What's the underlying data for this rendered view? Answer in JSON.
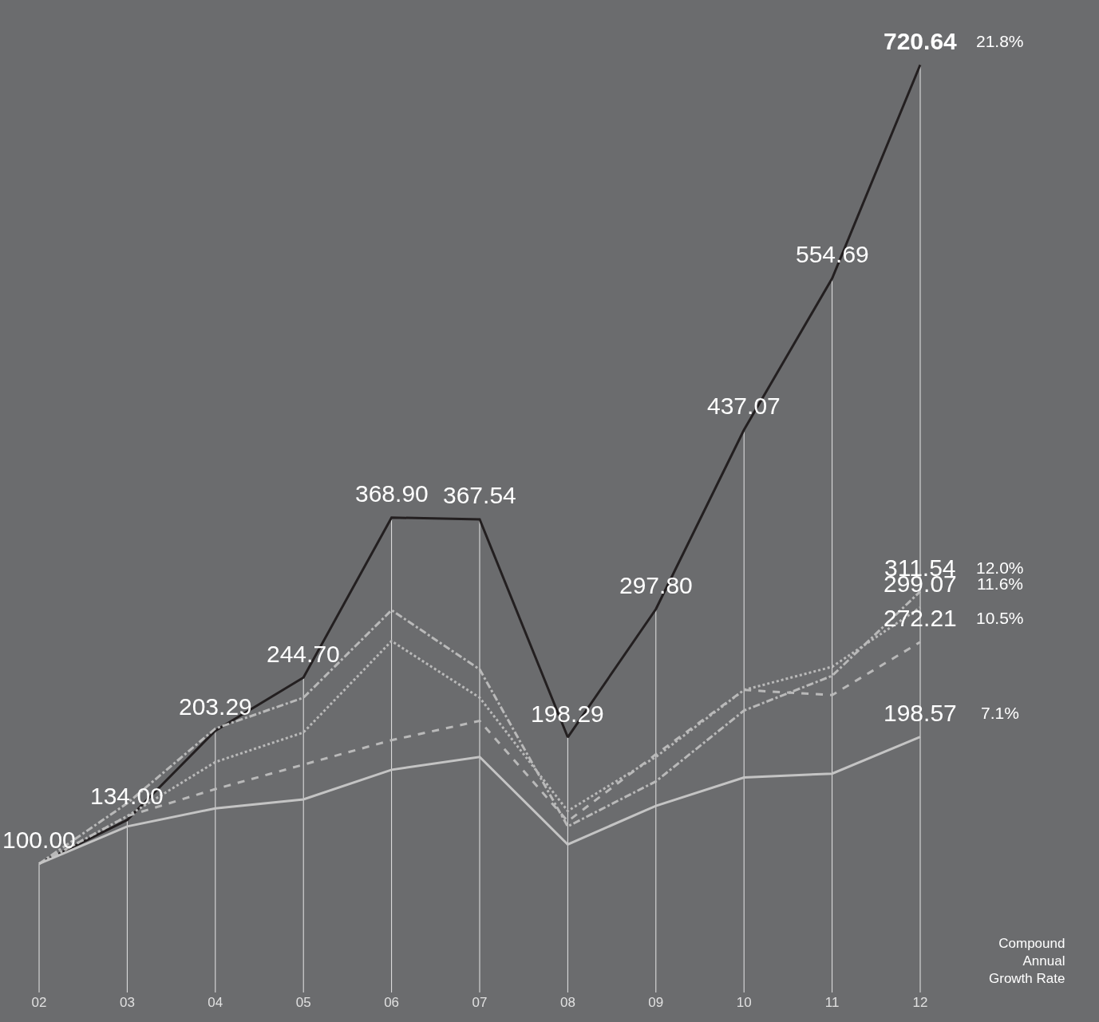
{
  "chart_data": {
    "type": "line",
    "categories": [
      "02",
      "03",
      "04",
      "05",
      "06",
      "07",
      "08",
      "09",
      "10",
      "11",
      "12"
    ],
    "series": [
      {
        "color": "#231f20",
        "line_style": "solid",
        "values": [
          100.0,
          134.0,
          203.29,
          244.7,
          368.9,
          367.54,
          198.29,
          297.8,
          437.07,
          554.69,
          720.64
        ],
        "value_labels": [
          "100.00",
          "134.00",
          "203.29",
          "244.70",
          "368.90",
          "367.54",
          "198.29",
          "297.80",
          "437.07",
          "554.69",
          "720.64"
        ]
      },
      {
        "color": "#b9b9b9",
        "line_style": "dashdot",
        "values": [
          100,
          147,
          205,
          229,
          297,
          251,
          129,
          164,
          219,
          246,
          311.54
        ],
        "value_labels": [
          null,
          null,
          null,
          null,
          null,
          null,
          null,
          null,
          null,
          null,
          "311.54"
        ]
      },
      {
        "color": "#b9b9b9",
        "line_style": "dotted",
        "values": [
          100,
          137,
          179,
          202,
          273,
          229,
          141,
          183,
          235,
          253,
          299.07
        ],
        "value_labels": [
          null,
          null,
          null,
          null,
          null,
          null,
          null,
          null,
          null,
          null,
          "299.07"
        ]
      },
      {
        "color": "#b9b9b9",
        "line_style": "dashed",
        "values": [
          100,
          137,
          158,
          177,
          196,
          211,
          133,
          185,
          235,
          231,
          272.21
        ],
        "value_labels": [
          null,
          null,
          null,
          null,
          null,
          null,
          null,
          null,
          null,
          null,
          "272.21"
        ]
      },
      {
        "color": "#c4c4c4",
        "line_style": "solid",
        "values": [
          100,
          129,
          143,
          150,
          173,
          183,
          115,
          145,
          167,
          170,
          198.57
        ],
        "value_labels": [
          null,
          null,
          null,
          null,
          null,
          null,
          null,
          null,
          null,
          null,
          "198.57"
        ]
      }
    ],
    "grid": "x",
    "tick_labels": "x",
    "marker": "none",
    "annotations": [
      "21.8%",
      "12.0%",
      "11.6%",
      "10.5%",
      "7.1%",
      "Compound Annual Growth Rate"
    ]
  }
}
